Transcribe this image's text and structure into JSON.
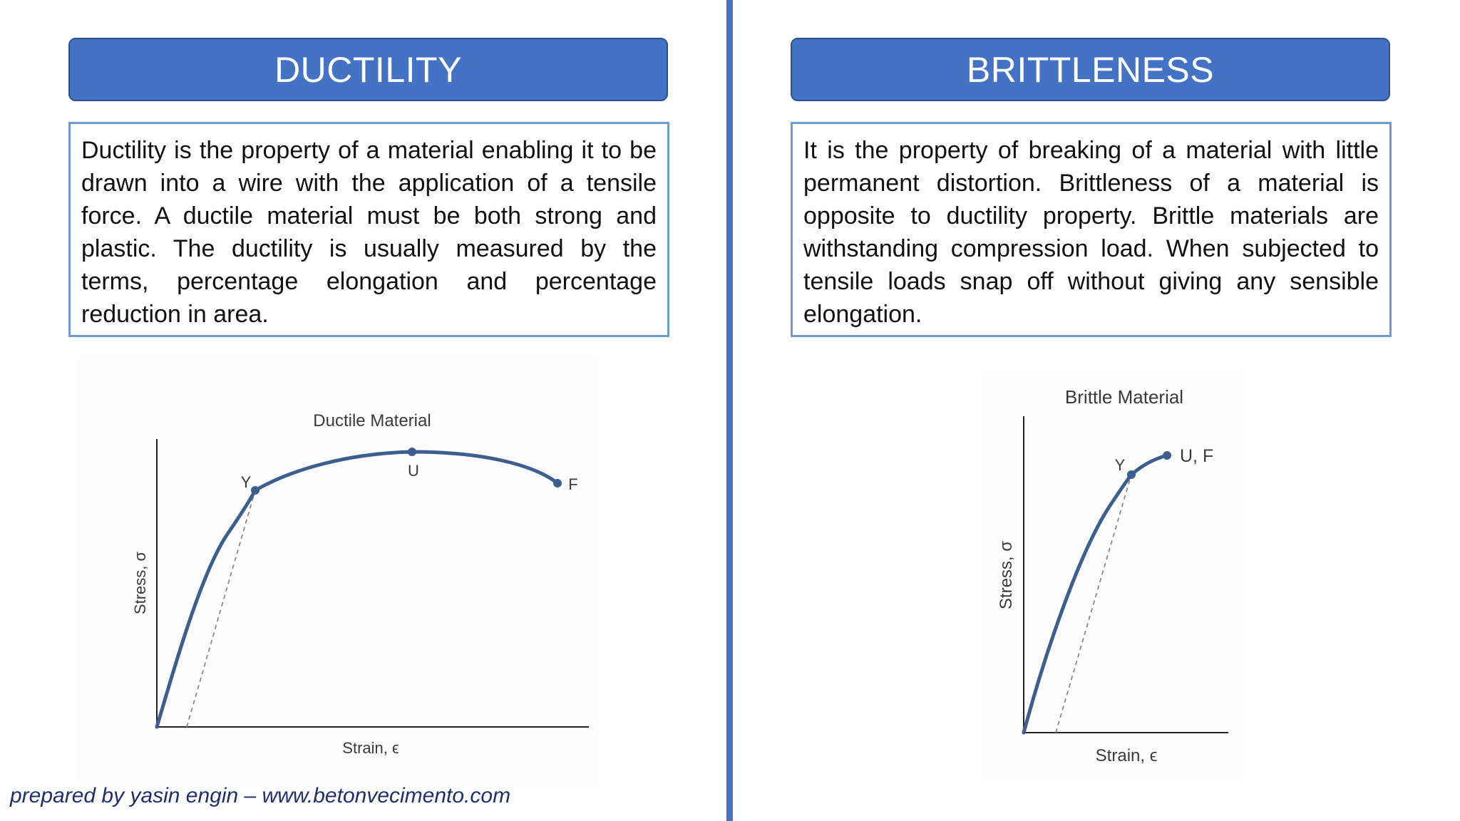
{
  "ductility": {
    "title": "DUCTILITY",
    "description": "Ductility is the property of a material enabling it to be drawn into a wire with the application of a tensile force. A ductile material must be both strong and plastic. The ductility is usually measured by the terms, percentage elongation and percentage reduction in area."
  },
  "brittleness": {
    "title": "BRITTLENESS",
    "description": "It is the property of breaking of a material with little permanent distortion. Brittleness of a material is opposite to ductility property. Brittle materials are withstanding compression load. When subjected to tensile loads snap off without giving any sensible elongation."
  },
  "ductile_chart": {
    "title": "Ductile Material",
    "xlabel": "Strain, ϵ",
    "ylabel": "Stress, σ",
    "point_labels": {
      "yield": "Y",
      "ultimate": "U",
      "fracture": "F"
    }
  },
  "brittle_chart": {
    "title": "Brittle Material",
    "xlabel": "Strain, ϵ",
    "ylabel": "Stress, σ",
    "point_labels": {
      "yield": "Y",
      "ultimate_fracture": "U, F"
    }
  },
  "colors": {
    "accent": "#4472c4",
    "curve": "#3d5f8f"
  },
  "footer": {
    "credit": "prepared by yasin engin – www.betonvecimento.com"
  }
}
